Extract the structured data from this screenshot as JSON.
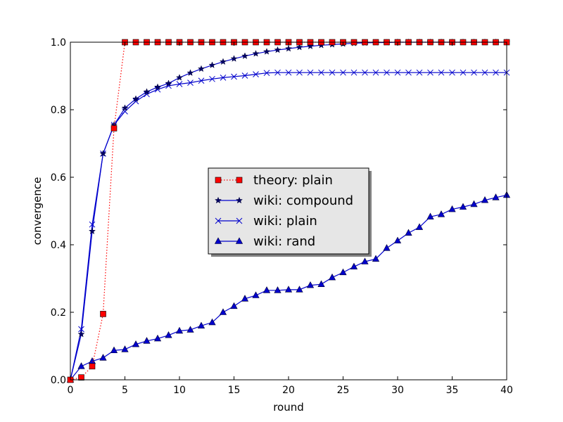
{
  "chart_data": {
    "type": "line",
    "title": "",
    "xlabel": "round",
    "ylabel": "convergence",
    "xlim": [
      0,
      40
    ],
    "ylim": [
      0.0,
      1.0
    ],
    "xticks": [
      "0",
      "5",
      "10",
      "15",
      "20",
      "25",
      "30",
      "35",
      "40"
    ],
    "yticks": [
      "0.0",
      "0.2",
      "0.4",
      "0.6",
      "0.8",
      "1.0"
    ],
    "grid": false,
    "legend": "center",
    "series": [
      {
        "name": "theory: plain",
        "color": "#ff0000",
        "line": "dotted",
        "marker": "square",
        "x": [
          0,
          1,
          2,
          3,
          4,
          5,
          6,
          7,
          8,
          9,
          10,
          11,
          12,
          13,
          14,
          15,
          16,
          17,
          18,
          19,
          20,
          21,
          22,
          23,
          24,
          25,
          26,
          27,
          28,
          29,
          30,
          31,
          32,
          33,
          34,
          35,
          36,
          37,
          38,
          39,
          40
        ],
        "y": [
          0.0,
          0.007,
          0.04,
          0.195,
          0.745,
          1.0,
          1.0,
          1.0,
          1.0,
          1.0,
          1.0,
          1.0,
          1.0,
          1.0,
          1.0,
          1.0,
          1.0,
          1.0,
          1.0,
          1.0,
          1.0,
          1.0,
          1.0,
          1.0,
          1.0,
          1.0,
          1.0,
          1.0,
          1.0,
          1.0,
          1.0,
          1.0,
          1.0,
          1.0,
          1.0,
          1.0,
          1.0,
          1.0,
          1.0,
          1.0,
          1.0
        ]
      },
      {
        "name": "wiki: compound",
        "color": "#0000cc",
        "line": "solid",
        "marker": "star",
        "x": [
          0,
          1,
          2,
          3,
          4,
          5,
          6,
          7,
          8,
          9,
          10,
          11,
          12,
          13,
          14,
          15,
          16,
          17,
          18,
          19,
          20,
          21,
          22,
          23,
          24,
          25,
          26,
          27,
          28,
          29,
          30,
          31,
          32,
          33,
          34,
          35,
          36,
          37,
          38,
          39,
          40
        ],
        "y": [
          0.0,
          0.135,
          0.44,
          0.67,
          0.755,
          0.805,
          0.832,
          0.853,
          0.867,
          0.878,
          0.895,
          0.909,
          0.921,
          0.932,
          0.942,
          0.951,
          0.959,
          0.966,
          0.972,
          0.977,
          0.981,
          0.985,
          0.988,
          0.991,
          0.993,
          0.995,
          0.997,
          0.998,
          0.999,
          0.999,
          1.0,
          1.0,
          1.0,
          1.0,
          1.0,
          1.0,
          1.0,
          1.0,
          1.0,
          1.0,
          1.0
        ]
      },
      {
        "name": "wiki: plain",
        "color": "#0000cc",
        "line": "solid",
        "marker": "x",
        "x": [
          0,
          1,
          2,
          3,
          4,
          5,
          6,
          7,
          8,
          9,
          10,
          11,
          12,
          13,
          14,
          15,
          16,
          17,
          18,
          19,
          20,
          21,
          22,
          23,
          24,
          25,
          26,
          27,
          28,
          29,
          30,
          31,
          32,
          33,
          34,
          35,
          36,
          37,
          38,
          39,
          40
        ],
        "y": [
          0.0,
          0.15,
          0.46,
          0.67,
          0.755,
          0.795,
          0.825,
          0.846,
          0.86,
          0.871,
          0.876,
          0.88,
          0.886,
          0.891,
          0.895,
          0.898,
          0.901,
          0.905,
          0.909,
          0.91,
          0.91,
          0.91,
          0.91,
          0.91,
          0.91,
          0.91,
          0.91,
          0.91,
          0.91,
          0.91,
          0.91,
          0.91,
          0.91,
          0.91,
          0.91,
          0.91,
          0.91,
          0.91,
          0.91,
          0.91,
          0.91
        ]
      },
      {
        "name": "wiki: rand",
        "color": "#0000cc",
        "line": "solid",
        "marker": "triangle",
        "x": [
          0,
          1,
          2,
          3,
          4,
          5,
          6,
          7,
          8,
          9,
          10,
          11,
          12,
          13,
          14,
          15,
          16,
          17,
          18,
          19,
          20,
          21,
          22,
          23,
          24,
          25,
          26,
          27,
          28,
          29,
          30,
          31,
          32,
          33,
          34,
          35,
          36,
          37,
          38,
          39,
          40
        ],
        "y": [
          0.0,
          0.04,
          0.055,
          0.065,
          0.087,
          0.09,
          0.105,
          0.115,
          0.122,
          0.132,
          0.145,
          0.148,
          0.16,
          0.17,
          0.2,
          0.218,
          0.24,
          0.25,
          0.265,
          0.265,
          0.267,
          0.267,
          0.28,
          0.283,
          0.303,
          0.318,
          0.335,
          0.35,
          0.358,
          0.39,
          0.412,
          0.435,
          0.452,
          0.483,
          0.49,
          0.505,
          0.512,
          0.52,
          0.532,
          0.54,
          0.547
        ]
      }
    ]
  }
}
